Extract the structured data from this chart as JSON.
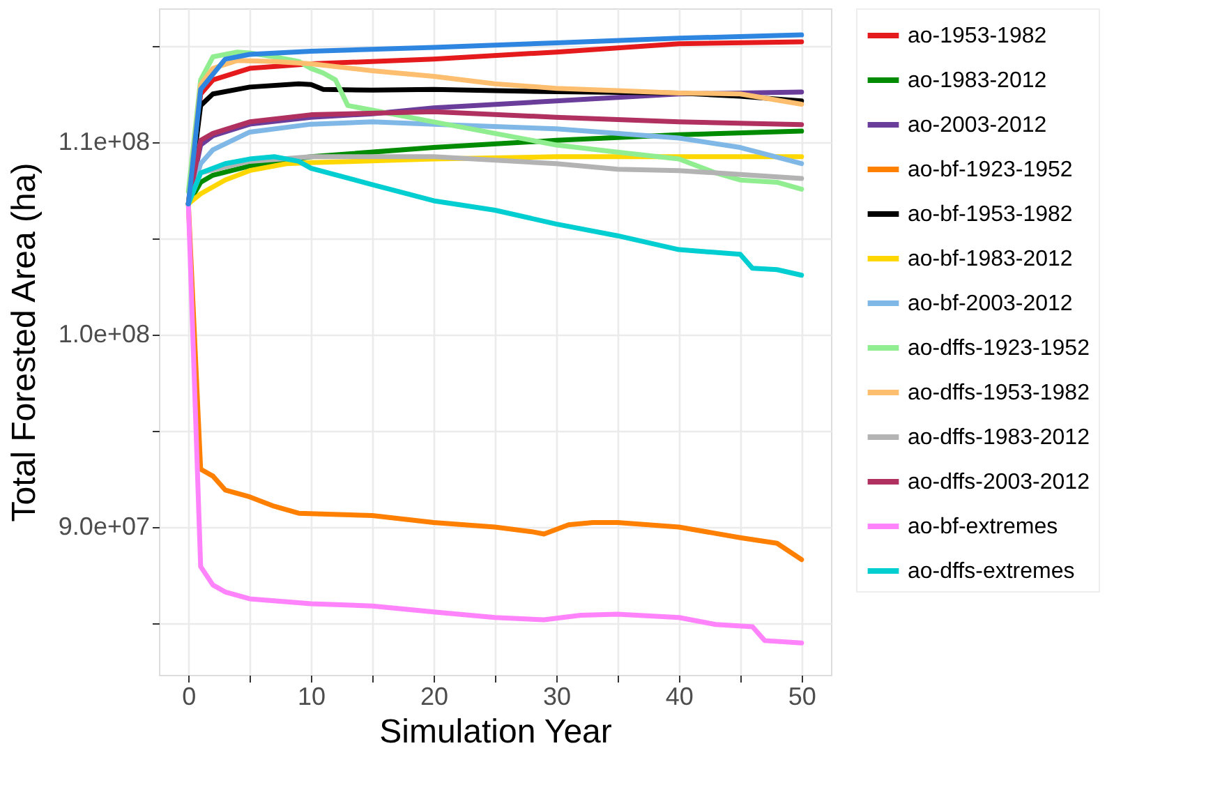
{
  "chart_data": {
    "type": "line",
    "xlabel": "Simulation Year",
    "ylabel": "Total Forested Area (ha)",
    "xlim": [
      -2.4,
      52.4
    ],
    "ylim": [
      82320000.0,
      116960000.0
    ],
    "xticks": [
      0,
      {
        "value": 5,
        "label": null
      },
      10,
      {
        "value": 15,
        "label": null
      },
      20,
      {
        "value": 25,
        "label": null
      },
      30,
      {
        "value": 35,
        "label": null
      },
      40,
      {
        "value": 45,
        "label": null
      },
      50
    ],
    "yticks": [
      {
        "value": 85000000.0,
        "label": null
      },
      {
        "value": 90000000.0,
        "label": "9.0e+07"
      },
      {
        "value": 95000000.0,
        "label": null
      },
      {
        "value": 100000000.0,
        "label": "1.0e+08"
      },
      {
        "value": 105000000.0,
        "label": null
      },
      {
        "value": 110000000.0,
        "label": "1.1e+08"
      },
      {
        "value": 115000000.0,
        "label": null
      }
    ],
    "grid": true,
    "legend": "right",
    "series": [
      {
        "name": "ao-1953-1982",
        "color": "#e41a1c",
        "x": [
          0,
          1,
          2,
          5,
          10,
          20,
          30,
          40,
          50
        ],
        "values": [
          106800000.0,
          112500000.0,
          113240000.0,
          113840000.0,
          114080000.0,
          114320000.0,
          114690000.0,
          115120000.0,
          115220000.0
        ]
      },
      {
        "name": "ao-1983-2012",
        "color": "#008b00",
        "x": [
          0,
          1,
          2,
          5,
          10,
          20,
          30,
          40,
          50
        ],
        "values": [
          106800000.0,
          107920000.0,
          108290000.0,
          108770000.0,
          109250000.0,
          109730000.0,
          110100000.0,
          110390000.0,
          110580000.0
        ]
      },
      {
        "name": "ao-2003-2012",
        "color": "#6a3d9a",
        "x": [
          0,
          1,
          2,
          5,
          10,
          15,
          20,
          30,
          40,
          50
        ],
        "values": [
          106800000.0,
          109860000.0,
          110340000.0,
          110940000.0,
          111300000.0,
          111480000.0,
          111790000.0,
          112150000.0,
          112510000.0,
          112610000.0
        ]
      },
      {
        "name": "ao-bf-1923-1952",
        "color": "#ff7f00",
        "x": [
          0,
          1,
          2,
          3,
          5,
          7,
          9,
          15,
          20,
          25,
          28,
          29,
          31,
          33,
          35,
          40,
          45,
          48,
          50
        ],
        "values": [
          106800000.0,
          93010000.0,
          92650000.0,
          91930000.0,
          91570000.0,
          91080000.0,
          90720000.0,
          90600000.0,
          90240000.0,
          90000000.0,
          89760000.0,
          89640000.0,
          90120000.0,
          90240000.0,
          90240000.0,
          90000000.0,
          89450000.0,
          89160000.0,
          88310000.0
        ]
      },
      {
        "name": "ao-bf-1953-1982",
        "color": "#000000",
        "x": [
          0,
          1,
          2,
          5,
          9,
          10,
          11,
          15,
          20,
          25,
          30,
          40,
          45,
          50
        ],
        "values": [
          106800000.0,
          111910000.0,
          112510000.0,
          112870000.0,
          113040000.0,
          113000000.0,
          112750000.0,
          112710000.0,
          112750000.0,
          112680000.0,
          112630000.0,
          112560000.0,
          112390000.0,
          112150000.0
        ]
      },
      {
        "name": "ao-bf-1983-2012",
        "color": "#ffd700",
        "x": [
          0,
          1,
          3,
          5,
          8,
          10,
          20,
          30,
          40,
          50
        ],
        "values": [
          106800000.0,
          107320000.0,
          108040000.0,
          108530000.0,
          108890000.0,
          108940000.0,
          109130000.0,
          109250000.0,
          109250000.0,
          109250000.0
        ]
      },
      {
        "name": "ao-bf-2003-2012",
        "color": "#7fb8e6",
        "x": [
          0,
          1,
          2,
          5,
          10,
          15,
          20,
          30,
          40,
          45,
          50
        ],
        "values": [
          106800000.0,
          108890000.0,
          109610000.0,
          110530000.0,
          110940000.0,
          111060000.0,
          110940000.0,
          110700000.0,
          110220000.0,
          109730000.0,
          108890000.0
        ]
      },
      {
        "name": "ao-dffs-1923-1952",
        "color": "#90ee90",
        "x": [
          0,
          1,
          2,
          4,
          5,
          7,
          9,
          10,
          11,
          12,
          13,
          15,
          20,
          25,
          30,
          35,
          40,
          43,
          45,
          48,
          50
        ],
        "values": [
          107440000.0,
          113240000.0,
          114440000.0,
          114690000.0,
          114640000.0,
          114440000.0,
          114200000.0,
          113840000.0,
          113600000.0,
          113240000.0,
          111910000.0,
          111670000.0,
          111060000.0,
          110460000.0,
          109860000.0,
          109490000.0,
          109130000.0,
          108410000.0,
          108040000.0,
          107920000.0,
          107560000.0
        ]
      },
      {
        "name": "ao-dffs-1953-1982",
        "color": "#fdbf6f",
        "x": [
          0,
          1,
          2,
          4,
          7,
          10,
          15,
          20,
          25,
          30,
          35,
          40,
          45,
          50
        ],
        "values": [
          106800000.0,
          113000000.0,
          113840000.0,
          114250000.0,
          114200000.0,
          114080000.0,
          113720000.0,
          113430000.0,
          113040000.0,
          112800000.0,
          112680000.0,
          112560000.0,
          112510000.0,
          111980000.0
        ]
      },
      {
        "name": "ao-dffs-1983-2012",
        "color": "#b3b3b3",
        "x": [
          0,
          1,
          5,
          10,
          20,
          30,
          35,
          40,
          50
        ],
        "values": [
          106800000.0,
          108410000.0,
          109010000.0,
          109250000.0,
          109250000.0,
          108890000.0,
          108600000.0,
          108530000.0,
          108120000.0
        ]
      },
      {
        "name": "ao-dffs-2003-2012",
        "color": "#b03060",
        "x": [
          0,
          1,
          2,
          5,
          10,
          20,
          30,
          40,
          50
        ],
        "values": [
          106800000.0,
          110100000.0,
          110460000.0,
          111060000.0,
          111430000.0,
          111590000.0,
          111300000.0,
          111060000.0,
          110920000.0
        ]
      },
      {
        "name": "ao-bf-extremes",
        "color": "#ff83fa",
        "x": [
          0,
          1,
          2,
          3,
          5,
          10,
          15,
          20,
          25,
          29,
          32,
          35,
          40,
          43,
          46,
          47,
          50
        ],
        "values": [
          106800000.0,
          87950000.0,
          86990000.0,
          86630000.0,
          86270000.0,
          86020000.0,
          85900000.0,
          85590000.0,
          85300000.0,
          85180000.0,
          85420000.0,
          85470000.0,
          85300000.0,
          84940000.0,
          84820000.0,
          84100000.0,
          83980000.0
        ]
      },
      {
        "name": "ao-dffs-extremes",
        "color": "#00ced1",
        "x": [
          0,
          1,
          3,
          5,
          7,
          9,
          10,
          15,
          20,
          25,
          30,
          35,
          40,
          45,
          46,
          48,
          50
        ],
        "values": [
          106800000.0,
          108410000.0,
          108890000.0,
          109130000.0,
          109250000.0,
          109010000.0,
          108650000.0,
          107800000.0,
          106960000.0,
          106470000.0,
          105750000.0,
          105140000.0,
          104420000.0,
          104180000.0,
          103450000.0,
          103380000.0,
          103090000.0
        ]
      },
      {
        "color": "#2f86e0",
        "x": [
          0,
          1,
          3,
          5,
          10,
          20,
          30,
          40,
          50
        ],
        "values": [
          106800000.0,
          112750000.0,
          114320000.0,
          114570000.0,
          114730000.0,
          114930000.0,
          115170000.0,
          115410000.0,
          115580000.0
        ]
      }
    ]
  }
}
